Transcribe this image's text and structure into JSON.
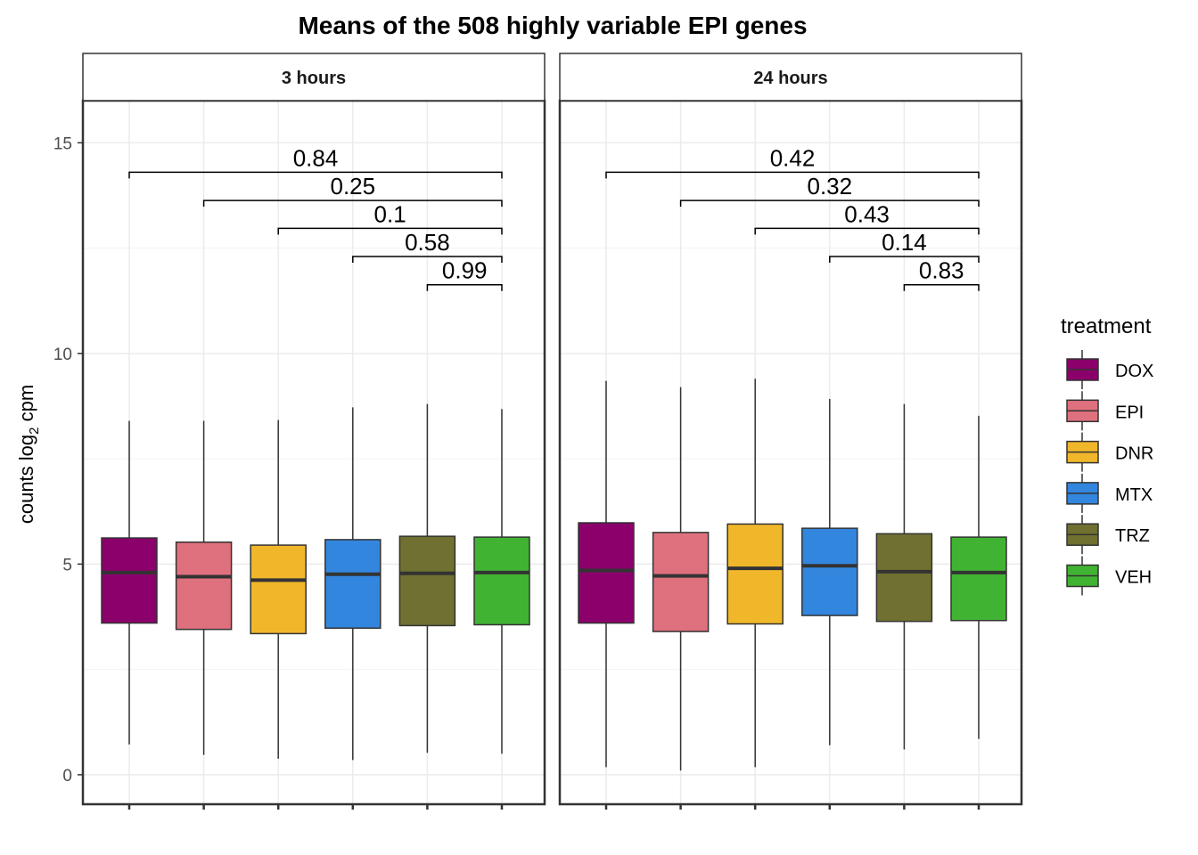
{
  "chart_data": {
    "type": "boxplot",
    "title": "Means of the 508 highly variable EPI genes",
    "ylabel": "counts log",
    "ylabel_sub": "2",
    "ylabel_suffix": " cpm",
    "ylim": [
      -0.7,
      16
    ],
    "yticks": [
      0,
      5,
      10,
      15
    ],
    "grid": true,
    "legend": {
      "title": "treatment",
      "placement": "right",
      "items": [
        {
          "label": "DOX",
          "color": "#8B006B"
        },
        {
          "label": "EPI",
          "color": "#DF707E"
        },
        {
          "label": "DNR",
          "color": "#F1B72B"
        },
        {
          "label": "MTX",
          "color": "#3386DD"
        },
        {
          "label": "TRZ",
          "color": "#707031"
        },
        {
          "label": "VEH",
          "color": "#41B333"
        }
      ]
    },
    "panels": [
      {
        "label": "3 hours",
        "boxes": [
          {
            "treatment": "DOX",
            "min": 0.72,
            "q1": 3.6,
            "median": 4.8,
            "q3": 5.62,
            "max": 8.4
          },
          {
            "treatment": "EPI",
            "min": 0.47,
            "q1": 3.45,
            "median": 4.7,
            "q3": 5.52,
            "max": 8.4
          },
          {
            "treatment": "DNR",
            "min": 0.38,
            "q1": 3.35,
            "median": 4.62,
            "q3": 5.45,
            "max": 8.42
          },
          {
            "treatment": "MTX",
            "min": 0.35,
            "q1": 3.48,
            "median": 4.76,
            "q3": 5.58,
            "max": 8.72
          },
          {
            "treatment": "TRZ",
            "min": 0.52,
            "q1": 3.54,
            "median": 4.78,
            "q3": 5.66,
            "max": 8.8
          },
          {
            "treatment": "VEH",
            "min": 0.5,
            "q1": 3.56,
            "median": 4.8,
            "q3": 5.64,
            "max": 8.68
          }
        ],
        "comparisons": [
          {
            "from": 0,
            "to": 5,
            "label": "0.84",
            "y": 14.3
          },
          {
            "from": 1,
            "to": 5,
            "label": "0.25",
            "y": 13.63
          },
          {
            "from": 2,
            "to": 5,
            "label": "0.1",
            "y": 12.97
          },
          {
            "from": 3,
            "to": 5,
            "label": "0.58",
            "y": 12.3
          },
          {
            "from": 4,
            "to": 5,
            "label": "0.99",
            "y": 11.63
          }
        ]
      },
      {
        "label": "24 hours",
        "boxes": [
          {
            "treatment": "DOX",
            "min": 0.18,
            "q1": 3.6,
            "median": 4.85,
            "q3": 5.98,
            "max": 9.35
          },
          {
            "treatment": "EPI",
            "min": 0.1,
            "q1": 3.4,
            "median": 4.72,
            "q3": 5.75,
            "max": 9.2
          },
          {
            "treatment": "DNR",
            "min": 0.18,
            "q1": 3.58,
            "median": 4.9,
            "q3": 5.95,
            "max": 9.4
          },
          {
            "treatment": "MTX",
            "min": 0.7,
            "q1": 3.78,
            "median": 4.96,
            "q3": 5.85,
            "max": 8.92
          },
          {
            "treatment": "TRZ",
            "min": 0.6,
            "q1": 3.64,
            "median": 4.82,
            "q3": 5.72,
            "max": 8.8
          },
          {
            "treatment": "VEH",
            "min": 0.85,
            "q1": 3.66,
            "median": 4.8,
            "q3": 5.64,
            "max": 8.52
          }
        ],
        "comparisons": [
          {
            "from": 0,
            "to": 5,
            "label": "0.42",
            "y": 14.3
          },
          {
            "from": 1,
            "to": 5,
            "label": "0.32",
            "y": 13.63
          },
          {
            "from": 2,
            "to": 5,
            "label": "0.43",
            "y": 12.97
          },
          {
            "from": 3,
            "to": 5,
            "label": "0.14",
            "y": 12.3
          },
          {
            "from": 4,
            "to": 5,
            "label": "0.83",
            "y": 11.63
          }
        ]
      }
    ]
  }
}
